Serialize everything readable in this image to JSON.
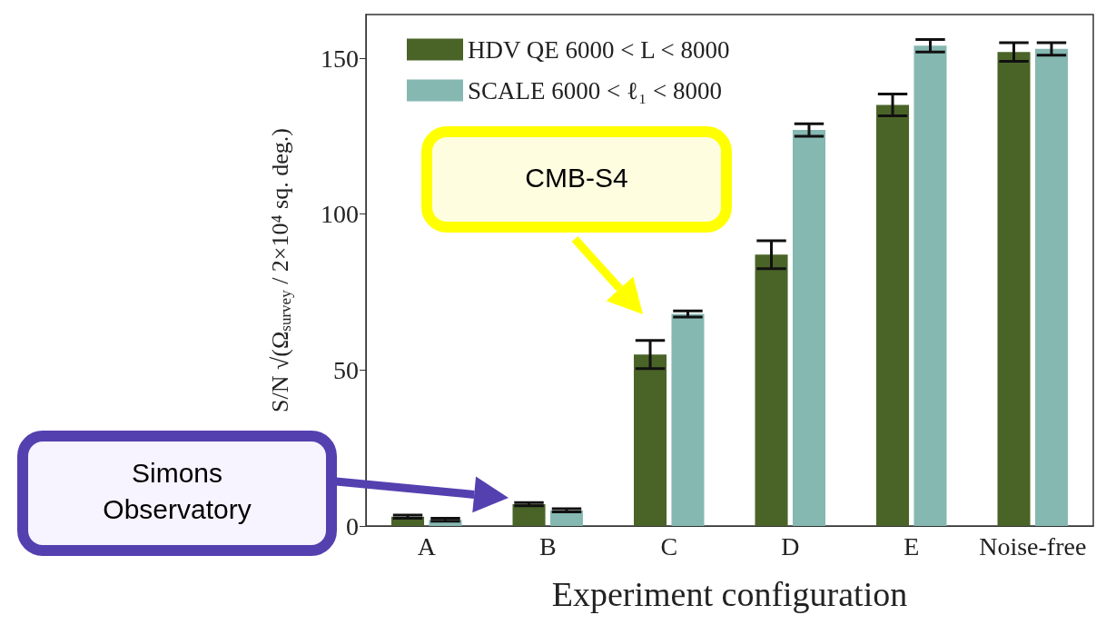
{
  "chart_data": {
    "type": "bar",
    "xlabel": "Experiment configuration",
    "ylabel": "S/N √(Ω$_{survey}$ / 2×10⁴ sq. deg.)",
    "categories": [
      "A",
      "B",
      "C",
      "D",
      "E",
      "Noise-free"
    ],
    "series": [
      {
        "name": "HDV QE 6000 < L < 8000",
        "color": "#4a6428",
        "values": [
          3,
          7,
          55,
          87,
          135,
          152
        ],
        "errors": [
          0.5,
          0.5,
          4.5,
          4.5,
          3.5,
          3
        ]
      },
      {
        "name": "SCALE 6000 < ℓ₁ < 8000",
        "color": "#86b8b2",
        "values": [
          2,
          5,
          68,
          127,
          154,
          153
        ],
        "errors": [
          0.5,
          0.5,
          1,
          2,
          2,
          2
        ]
      }
    ],
    "ylim": [
      0,
      164
    ],
    "yticks": [
      0,
      50,
      100,
      150
    ],
    "grid": false,
    "legend": "top left",
    "annotations": [
      "CMB-S4",
      "Simons Observatory"
    ]
  }
}
